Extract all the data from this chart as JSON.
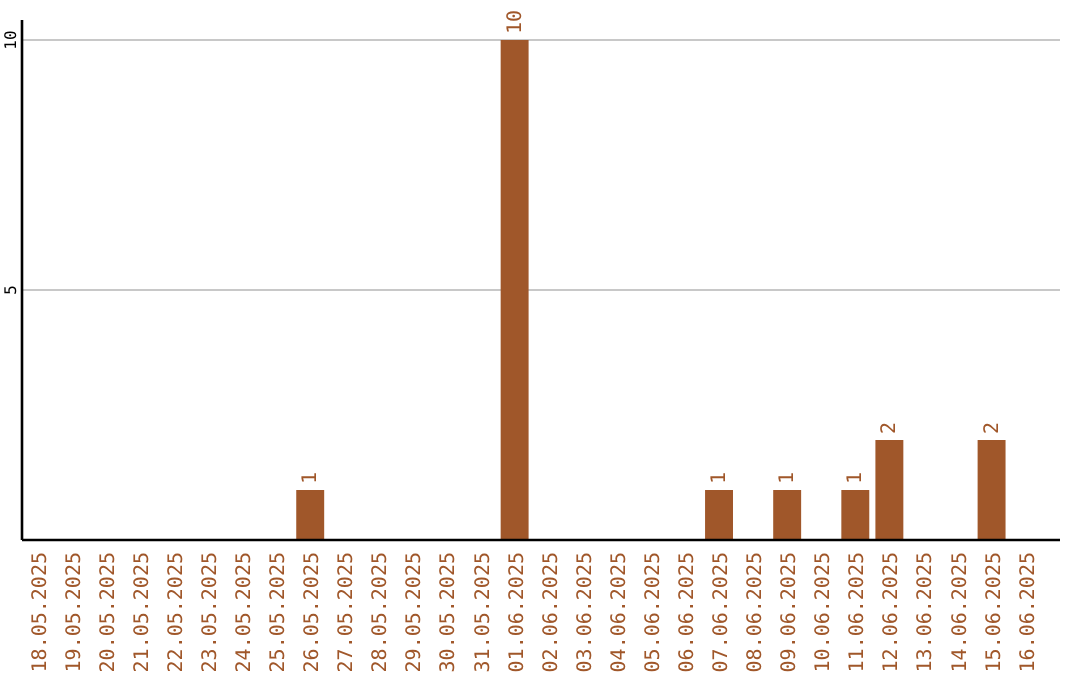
{
  "chart_data": {
    "type": "bar",
    "categories": [
      "18.05.2025",
      "19.05.2025",
      "20.05.2025",
      "21.05.2025",
      "22.05.2025",
      "23.05.2025",
      "24.05.2025",
      "25.05.2025",
      "26.05.2025",
      "27.05.2025",
      "28.05.2025",
      "29.05.2025",
      "30.05.2025",
      "31.05.2025",
      "01.06.2025",
      "02.06.2025",
      "03.06.2025",
      "04.06.2025",
      "05.06.2025",
      "06.06.2025",
      "07.06.2025",
      "08.06.2025",
      "09.06.2025",
      "10.06.2025",
      "11.06.2025",
      "12.06.2025",
      "13.06.2025",
      "14.06.2025",
      "15.06.2025",
      "16.06.2025"
    ],
    "values": [
      0,
      0,
      0,
      0,
      0,
      0,
      0,
      0,
      1,
      0,
      0,
      0,
      0,
      0,
      10,
      0,
      0,
      0,
      0,
      0,
      1,
      0,
      1,
      0,
      1,
      2,
      0,
      0,
      2,
      0
    ],
    "value_labels": [
      null,
      null,
      null,
      null,
      null,
      null,
      null,
      null,
      "1",
      null,
      null,
      null,
      null,
      null,
      "10",
      null,
      null,
      null,
      null,
      null,
      "1",
      null,
      "1",
      null,
      "1",
      "2",
      null,
      null,
      "2",
      null
    ],
    "color": "#a0572a",
    "ylim": [
      0,
      10.4
    ],
    "yticks": [
      5,
      10
    ],
    "grid": "y"
  }
}
